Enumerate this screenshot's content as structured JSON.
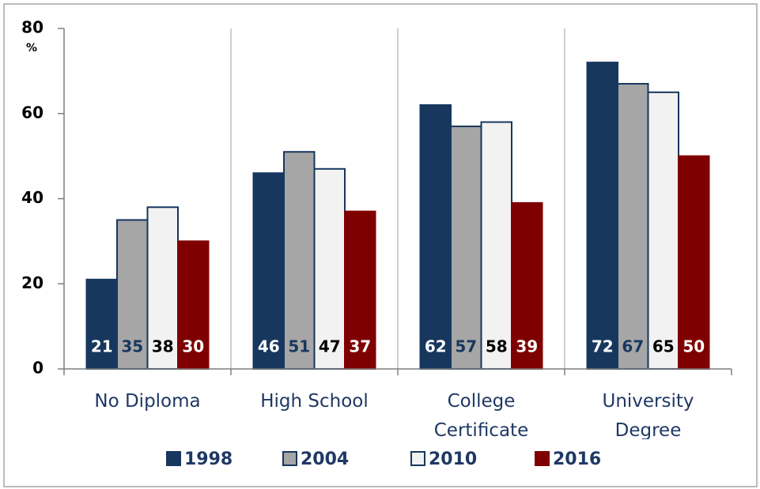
{
  "chart_data": {
    "type": "bar",
    "y_label": "%",
    "categories": [
      "No Diploma",
      "High School",
      "College Certificate",
      "University Degree"
    ],
    "series": [
      {
        "name": "1998",
        "color": "#17375e",
        "border": "#17375e",
        "label_color": "#ffffff",
        "values": [
          21,
          46,
          62,
          72
        ]
      },
      {
        "name": "2004",
        "color": "#a6a6a6",
        "border": "#17375e",
        "label_color": "#17375e",
        "values": [
          35,
          51,
          57,
          67
        ]
      },
      {
        "name": "2010",
        "color": "#f2f2f2",
        "border": "#17375e",
        "label_color": "#000000",
        "values": [
          38,
          47,
          58,
          65
        ]
      },
      {
        "name": "2016",
        "color": "#7f0000",
        "border": "#7f0000",
        "label_color": "#ffffff",
        "values": [
          30,
          37,
          39,
          50
        ]
      }
    ],
    "ylim": [
      0,
      80
    ],
    "yticks": [
      0,
      20,
      40,
      60,
      80
    ],
    "grid": "vertical",
    "legend": "bottom"
  }
}
